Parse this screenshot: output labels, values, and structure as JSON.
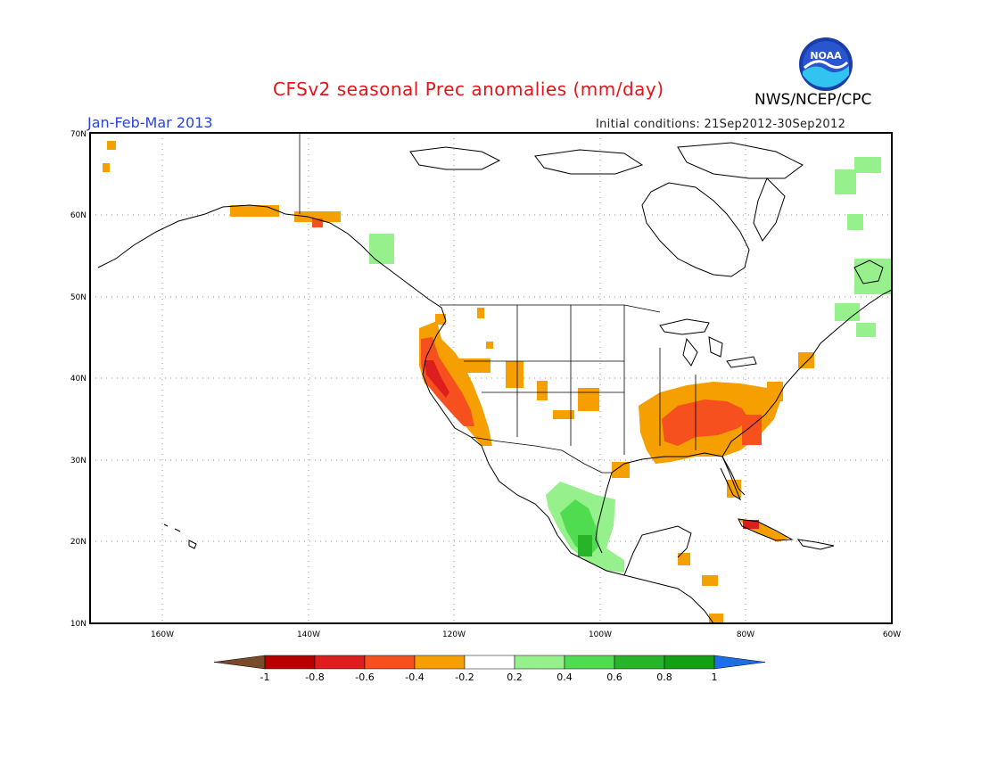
{
  "header": {
    "title": "CFSv2 seasonal Prec anomalies (mm/day)",
    "period": "Jan-Feb-Mar 2013",
    "initial_conditions": "Initial conditions: 21Sep2012-30Sep2012",
    "agency": "NWS/NCEP/CPC",
    "logo_text": "NOAA"
  },
  "map": {
    "projection": "lat-lon",
    "lat_range": [
      10,
      70
    ],
    "lon_range": [
      -170,
      -60
    ],
    "lat_labels": [
      "10N",
      "20N",
      "30N",
      "40N",
      "50N",
      "60N",
      "70N"
    ],
    "lon_labels": [
      "160W",
      "140W",
      "120W",
      "100W",
      "80W",
      "60W"
    ],
    "gridlines": "dotted"
  },
  "colorbar": {
    "ticks": [
      "-1",
      "-0.8",
      "-0.6",
      "-0.4",
      "-0.2",
      "0.2",
      "0.4",
      "0.6",
      "0.8",
      "1"
    ],
    "colors": [
      "#7a4a2a",
      "#b80000",
      "#dc1e1e",
      "#f5501e",
      "#f5a000",
      "#ffffff",
      "#96f08c",
      "#50dc50",
      "#28b428",
      "#14a014",
      "#1e6ee6"
    ]
  }
}
